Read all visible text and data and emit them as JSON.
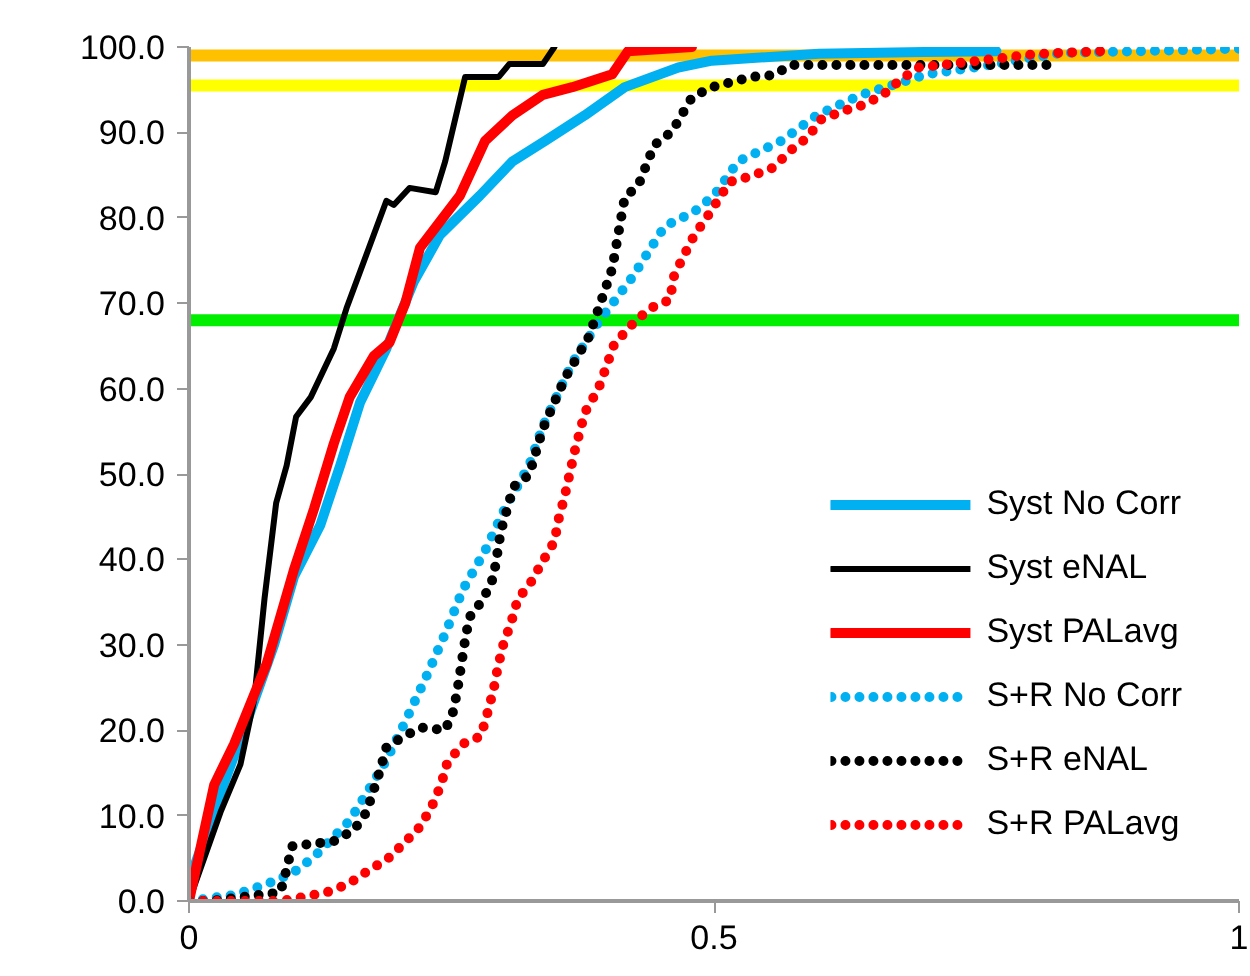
{
  "chart_data": {
    "type": "line",
    "xlim": [
      0,
      1
    ],
    "ylim": [
      0,
      100
    ],
    "xticks": [
      0,
      0.5,
      1
    ],
    "yticks": [
      {
        "value": 0,
        "label": "0.0"
      },
      {
        "value": 10,
        "label": "10.0"
      },
      {
        "value": 20,
        "label": "20.0"
      },
      {
        "value": 30,
        "label": "30.0"
      },
      {
        "value": 40,
        "label": "40.0"
      },
      {
        "value": 50,
        "label": "50.0"
      },
      {
        "value": 60,
        "label": "60.0"
      },
      {
        "value": 70,
        "label": "70.0"
      },
      {
        "value": 80,
        "label": "80.0"
      },
      {
        "value": 90,
        "label": "90.0"
      },
      {
        "value": 100,
        "label": "100.0"
      }
    ],
    "grid": false,
    "legend": "bottom right",
    "marker": "none",
    "series": [
      {
        "name": "Syst No Corr",
        "color": "#00b0f0",
        "line_style": "solid",
        "x": [
          0,
          0.005,
          0.03,
          0.055,
          0.081,
          0.1,
          0.125,
          0.144,
          0.163,
          0.188,
          0.214,
          0.239,
          0.277,
          0.308,
          0.339,
          0.377,
          0.415,
          0.466,
          0.498,
          0.6,
          0.7,
          0.769
        ],
        "values": [
          0,
          4,
          12.7,
          21,
          30,
          38,
          44,
          51,
          58.4,
          64.7,
          72.5,
          78,
          82.6,
          86.6,
          89,
          92,
          95.3,
          97.6,
          98.4,
          99.2,
          99.4,
          99.5
        ]
      },
      {
        "name": "Syst eNAL",
        "color": "#000000",
        "line_style": "solid",
        "x": [
          0,
          0.03,
          0.049,
          0.062,
          0.072,
          0.083,
          0.093,
          0.102,
          0.116,
          0.138,
          0.15,
          0.188,
          0.195,
          0.21,
          0.235,
          0.244,
          0.263,
          0.295,
          0.305,
          0.337,
          0.348
        ],
        "values": [
          0,
          10.4,
          16,
          23.5,
          35.5,
          46.6,
          51,
          56.7,
          59,
          64.7,
          69.4,
          82,
          81.5,
          83.5,
          83,
          86.6,
          96.5,
          96.5,
          98,
          98,
          100
        ]
      },
      {
        "name": "Syst PALavg",
        "color": "#ff0000",
        "line_style": "solid",
        "x": [
          0,
          0.024,
          0.043,
          0.074,
          0.1,
          0.119,
          0.138,
          0.153,
          0.176,
          0.191,
          0.206,
          0.22,
          0.258,
          0.282,
          0.308,
          0.337,
          0.365,
          0.403,
          0.418,
          0.479
        ],
        "values": [
          0,
          13.6,
          18.4,
          27.8,
          38.8,
          45.9,
          53.6,
          59,
          63.8,
          65.4,
          70,
          76.5,
          82.6,
          89,
          92,
          94.4,
          95.3,
          96.8,
          99.5,
          100
        ]
      },
      {
        "name": "S+R No Corr",
        "color": "#00b0f0",
        "line_style": "dotted",
        "x": [
          0,
          0.043,
          0.065,
          0.085,
          0.104,
          0.121,
          0.153,
          0.176,
          0.188,
          0.206,
          0.225,
          0.244,
          0.261,
          0.282,
          0.301,
          0.324,
          0.337,
          0.365,
          0.39,
          0.422,
          0.453,
          0.481,
          0.5,
          0.523,
          0.564,
          0.598,
          0.64,
          0.703,
          0.769,
          0.831,
          0.902,
          1
        ],
        "values": [
          0,
          0.7,
          1.6,
          2.5,
          3.7,
          5.4,
          9.4,
          14,
          16.5,
          21,
          26,
          31.3,
          36.5,
          41,
          46,
          51,
          55.6,
          63,
          67.8,
          73,
          79,
          80.7,
          82.6,
          86.6,
          89,
          92,
          94.4,
          96.8,
          98,
          99.3,
          99.5,
          99.8
        ]
      },
      {
        "name": "S+R eNAL",
        "color": "#000000",
        "line_style": "dotted",
        "x": [
          0,
          0.02,
          0.087,
          0.093,
          0.098,
          0.138,
          0.157,
          0.169,
          0.182,
          0.188,
          0.205,
          0.222,
          0.244,
          0.252,
          0.256,
          0.263,
          0.267,
          0.28,
          0.29,
          0.297,
          0.309,
          0.324,
          0.337,
          0.358,
          0.381,
          0.403,
          0.415,
          0.428,
          0.443,
          0.46,
          0.479,
          0.498,
          0.536,
          0.557,
          0.573,
          0.82
        ],
        "values": [
          0,
          0,
          1,
          3.7,
          6.4,
          7,
          8.3,
          10.4,
          15.3,
          18,
          19.3,
          20.3,
          20,
          22.3,
          25,
          30.6,
          33.2,
          35.3,
          37.9,
          43.3,
          48.5,
          49.9,
          55.3,
          61.2,
          66.1,
          74,
          82.4,
          83.8,
          88.5,
          90.1,
          94.1,
          95.3,
          96.5,
          96.7,
          97.9,
          97.9
        ]
      },
      {
        "name": "S+R PALavg",
        "color": "#ff0000",
        "line_style": "dotted",
        "x": [
          0,
          0.02,
          0.044,
          0.067,
          0.088,
          0.11,
          0.131,
          0.152,
          0.17,
          0.189,
          0.205,
          0.22,
          0.231,
          0.24,
          0.246,
          0.261,
          0.278,
          0.284,
          0.29,
          0.294,
          0.299,
          0.307,
          0.313,
          0.326,
          0.337,
          0.348,
          0.352,
          0.358,
          0.367,
          0.377,
          0.39,
          0.405,
          0.422,
          0.439,
          0.458,
          0.462,
          0.471,
          0.481,
          0.494,
          0.515,
          0.536,
          0.557,
          0.572,
          0.589,
          0.602,
          0.623,
          0.642,
          0.661,
          0.678,
          0.695,
          0.718,
          0.801,
          0.826,
          0.869
        ],
        "values": [
          0,
          0,
          0,
          0,
          0,
          0.5,
          1,
          2,
          3.5,
          4.9,
          6.8,
          8.7,
          11,
          13.6,
          16.2,
          18.4,
          19.3,
          21.9,
          24.7,
          27.3,
          29.9,
          32.7,
          35.3,
          37.4,
          39.8,
          42.1,
          44.7,
          47.5,
          52.5,
          57.2,
          60,
          65.2,
          67.5,
          69.4,
          70.4,
          73.2,
          75.5,
          77.9,
          80.2,
          84.2,
          84.9,
          85.9,
          87.8,
          89.4,
          91.5,
          92.5,
          93.2,
          94.4,
          96.2,
          97.6,
          97.9,
          99.1,
          99.3,
          99.5
        ]
      }
    ],
    "ref_lines": [
      {
        "axis": "y",
        "value": 68,
        "color": "#00ee00"
      },
      {
        "axis": "y",
        "value": 95.5,
        "color": "#ffff00"
      },
      {
        "axis": "y",
        "value": 99,
        "color": "#ffc000"
      }
    ]
  }
}
